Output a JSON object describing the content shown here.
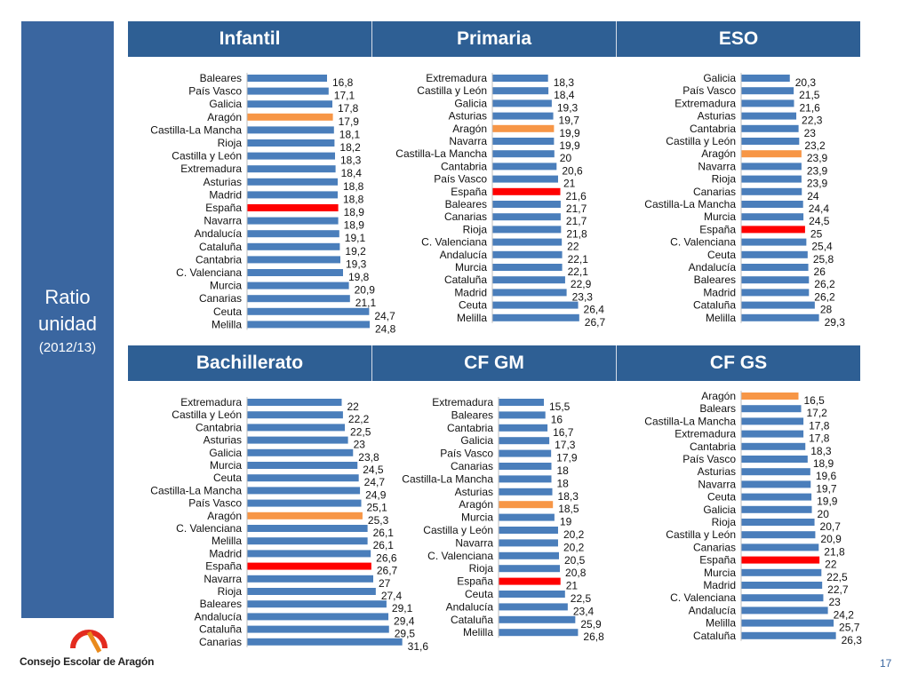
{
  "side": {
    "line1": "Ratio",
    "line2": "unidad",
    "line3": "(2012/13)"
  },
  "header_top": [
    "Infantil",
    "Primaria",
    "ESO"
  ],
  "header_bottom": [
    "Bachillerato",
    "CF GM",
    "CF GS"
  ],
  "footer": {
    "org": "Consejo Escolar de Aragón"
  },
  "page_number": "17",
  "colors": {
    "bar": "#4a7ebb",
    "highlight_aragon": "#f79646",
    "highlight_espana": "#ff0000",
    "header_bg": "#2e5f94",
    "side_bg": "#3a66a0"
  },
  "chart_data": [
    {
      "type": "bar",
      "orientation": "horizontal",
      "xlim": [
        0,
        32
      ],
      "categories": [
        "Baleares",
        "País Vasco",
        "Galicia",
        "Aragón",
        "Castilla-La Mancha",
        "Rioja",
        "Castilla y León",
        "Extremadura",
        "Asturias",
        "Madrid",
        "España",
        "Navarra",
        "Andalucía",
        "Cataluña",
        "Cantabria",
        "C. Valenciana",
        "Murcia",
        "Canarias",
        "Ceuta",
        "Melilla"
      ],
      "values": [
        16.8,
        17.1,
        17.8,
        17.9,
        18.1,
        18.2,
        18.3,
        18.4,
        18.8,
        18.8,
        18.9,
        18.9,
        19.1,
        19.2,
        19.3,
        19.8,
        20.9,
        21.1,
        24.7,
        24.8
      ],
      "labels": [
        "16,8",
        "17,1",
        "17,8",
        "17,9",
        "18,1",
        "18,2",
        "18,3",
        "18,4",
        "18,8",
        "18,8",
        "18,9",
        "18,9",
        "19,1",
        "19,2",
        "19,3",
        "19,8",
        "20,9",
        "21,1",
        "24,7",
        "24,8"
      ]
    },
    {
      "type": "bar",
      "orientation": "horizontal",
      "xlim": [
        0,
        32
      ],
      "categories": [
        "Extremadura",
        "Castilla y León",
        "Galicia",
        "Asturias",
        "Aragón",
        "Navarra",
        "Castilla-La Mancha",
        "Cantabria",
        "País Vasco",
        "España",
        "Baleares",
        "Canarias",
        "Rioja",
        "C. Valenciana",
        "Andalucía",
        "Murcia",
        "Cataluña",
        "Madrid",
        "Ceuta",
        "Melilla"
      ],
      "values": [
        18.3,
        18.4,
        19.3,
        19.7,
        19.9,
        19.9,
        20,
        20.6,
        21,
        21.6,
        21.7,
        21.7,
        21.8,
        22,
        22.1,
        22.1,
        22.9,
        23.3,
        26.4,
        26.7
      ],
      "labels": [
        "18,3",
        "18,4",
        "19,3",
        "19,7",
        "19,9",
        "19,9",
        "20",
        "20,6",
        "21",
        "21,6",
        "21,7",
        "21,7",
        "21,8",
        "22",
        "22,1",
        "22,1",
        "22,9",
        "23,3",
        "26,4",
        "26,7"
      ]
    },
    {
      "type": "bar",
      "orientation": "horizontal",
      "xlim": [
        0,
        32
      ],
      "categories": [
        "Galicia",
        "País Vasco",
        "Extremadura",
        "Asturias",
        "Cantabria",
        "Castilla y León",
        "Aragón",
        "Navarra",
        "Rioja",
        "Canarias",
        "Castilla-La Mancha",
        "Murcia",
        "España",
        "C. Valenciana",
        "Ceuta",
        "Andalucía",
        "Baleares",
        "Madrid",
        "Cataluña",
        "Melilla"
      ],
      "values": [
        20.3,
        21.5,
        21.6,
        22.3,
        23,
        23.2,
        23.9,
        23.9,
        23.9,
        24,
        24.4,
        24.5,
        25,
        25.4,
        25.8,
        26,
        26.2,
        26.2,
        28,
        29.3
      ],
      "labels": [
        "20,3",
        "21,5",
        "21,6",
        "22,3",
        "23",
        "23,2",
        "23,9",
        "23,9",
        "23,9",
        "24",
        "24,4",
        "24,5",
        "25",
        "25,4",
        "25,8",
        "26",
        "26,2",
        "26,2",
        "28",
        "29,3"
      ]
    },
    {
      "type": "bar",
      "orientation": "horizontal",
      "xlim": [
        0,
        32
      ],
      "categories": [
        "Extremadura",
        "Castilla y León",
        "Cantabria",
        "Asturias",
        "Galicia",
        "Murcia",
        "Ceuta",
        "Castilla-La Mancha",
        "País Vasco",
        "Aragón",
        "C. Valenciana",
        "Melilla",
        "Madrid",
        "España",
        "Navarra",
        "Rioja",
        "Baleares",
        "Andalucía",
        "Cataluña",
        "Canarias"
      ],
      "values": [
        22,
        22.2,
        22.5,
        23,
        23.8,
        24.5,
        24.7,
        24.9,
        25.1,
        25.3,
        26.1,
        26.1,
        26.6,
        26.7,
        27,
        27.4,
        29.1,
        29.4,
        29.5,
        31.6
      ],
      "labels": [
        "22",
        "22,2",
        "22,5",
        "23",
        "23,8",
        "24,5",
        "24,7",
        "24,9",
        "25,1",
        "25,3",
        "26,1",
        "26,1",
        "26,6",
        "26,7",
        "27",
        "27,4",
        "29,1",
        "29,4",
        "29,5",
        "31,6"
      ]
    },
    {
      "type": "bar",
      "orientation": "horizontal",
      "xlim": [
        0,
        32
      ],
      "categories": [
        "Extremadura",
        "Baleares",
        "Cantabria",
        "Galicia",
        "País Vasco",
        "Canarias",
        "Castilla-La Mancha",
        "Asturias",
        "Aragón",
        "Murcia",
        "Castilla y León",
        "Navarra",
        "C. Valenciana",
        "Rioja",
        "España",
        "Ceuta",
        "Andalucía",
        "Cataluña",
        "Melilla"
      ],
      "values": [
        15.5,
        16,
        16.7,
        17.3,
        17.9,
        18,
        18,
        18.3,
        18.5,
        19,
        20.2,
        20.2,
        20.5,
        20.8,
        21,
        22.5,
        23.4,
        25.9,
        26.8
      ],
      "labels": [
        "15,5",
        "16",
        "16,7",
        "17,3",
        "17,9",
        "18",
        "18",
        "18,3",
        "18,5",
        "19",
        "20,2",
        "20,2",
        "20,5",
        "20,8",
        "21",
        "22,5",
        "23,4",
        "25,9",
        "26,8"
      ]
    },
    {
      "type": "bar",
      "orientation": "horizontal",
      "xlim": [
        0,
        32
      ],
      "categories": [
        "Aragón",
        "Balears",
        "Castilla-La Mancha",
        "Extremadura",
        "Cantabria",
        "País Vasco",
        "Asturias",
        "Navarra",
        "Ceuta",
        "Galicia",
        "Rioja",
        "Castilla y León",
        "Canarias",
        "España",
        "Murcia",
        "Madrid",
        "C. Valenciana",
        "Andalucía",
        "Melilla",
        "Cataluña"
      ],
      "values": [
        16.5,
        17.2,
        17.8,
        17.8,
        18.3,
        18.9,
        19.6,
        19.7,
        19.9,
        20,
        20.7,
        20.9,
        21.8,
        22,
        22.5,
        22.7,
        23,
        24.2,
        25.7,
        26.3
      ],
      "labels": [
        "16,5",
        "17,2",
        "17,8",
        "17,8",
        "18,3",
        "18,9",
        "19,6",
        "19,7",
        "19,9",
        "20",
        "20,7",
        "20,9",
        "21,8",
        "22",
        "22,5",
        "22,7",
        "23",
        "24,2",
        "25,7",
        "26,3"
      ]
    }
  ]
}
